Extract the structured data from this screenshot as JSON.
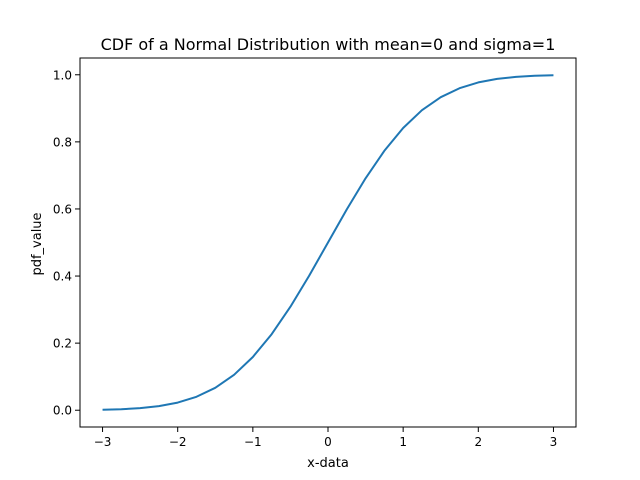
{
  "chart_data": {
    "type": "line",
    "title": "CDF of a Normal Distribution with mean=0 and sigma=1",
    "xlabel": "x-data",
    "ylabel": "pdf_value",
    "xlim": [
      -3.3,
      3.3
    ],
    "ylim": [
      -0.05,
      1.05
    ],
    "xticks": [
      -3,
      -2,
      -1,
      0,
      1,
      2,
      3
    ],
    "xtick_labels": [
      "−3",
      "−2",
      "−1",
      "0",
      "1",
      "2",
      "3"
    ],
    "yticks": [
      0.0,
      0.2,
      0.4,
      0.6,
      0.8,
      1.0
    ],
    "ytick_labels": [
      "0.0",
      "0.2",
      "0.4",
      "0.6",
      "0.8",
      "1.0"
    ],
    "grid": false,
    "series": [
      {
        "color": "#1f77b4",
        "x": [
          -3.0,
          -2.75,
          -2.5,
          -2.25,
          -2.0,
          -1.75,
          -1.5,
          -1.25,
          -1.0,
          -0.75,
          -0.5,
          -0.25,
          0.0,
          0.25,
          0.5,
          0.75,
          1.0,
          1.25,
          1.5,
          1.75,
          2.0,
          2.25,
          2.5,
          2.75,
          3.0
        ],
        "y": [
          0.0013,
          0.003,
          0.0062,
          0.0122,
          0.0228,
          0.0401,
          0.0668,
          0.1056,
          0.1587,
          0.2266,
          0.3085,
          0.4013,
          0.5,
          0.5987,
          0.6915,
          0.7734,
          0.8413,
          0.8944,
          0.9332,
          0.9599,
          0.9772,
          0.9878,
          0.9938,
          0.997,
          0.9987
        ]
      }
    ]
  }
}
